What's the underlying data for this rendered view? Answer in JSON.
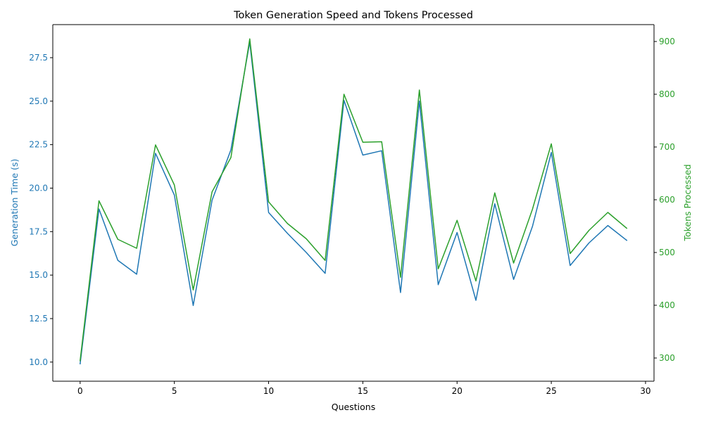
{
  "chart_data": {
    "type": "line",
    "title": "Token Generation Speed and Tokens Processed",
    "xlabel": "Questions",
    "ylabel_left": "Generation Time (s)",
    "ylabel_right": "Tokens Processed",
    "xlim": [
      -1.45,
      30.45
    ],
    "ylim_left": [
      8.9,
      29.4
    ],
    "ylim_right": [
      256,
      932
    ],
    "x_ticks": [
      0,
      5,
      10,
      15,
      20,
      25,
      30
    ],
    "y_ticks_left": [
      10.0,
      12.5,
      15.0,
      17.5,
      20.0,
      22.5,
      25.0,
      27.5
    ],
    "y_ticks_left_labels": [
      "10.0",
      "12.5",
      "15.0",
      "17.5",
      "20.0",
      "22.5",
      "25.0",
      "27.5"
    ],
    "y_ticks_right": [
      300,
      400,
      500,
      600,
      700,
      800,
      900
    ],
    "grid": false,
    "x": [
      0,
      1,
      2,
      3,
      4,
      5,
      6,
      7,
      8,
      9,
      10,
      11,
      12,
      13,
      14,
      15,
      16,
      17,
      18,
      19,
      20,
      21,
      22,
      23,
      24,
      25,
      26,
      27,
      28,
      29
    ],
    "series": [
      {
        "axis": "left",
        "color": "#1f77b4",
        "values": [
          9.9,
          18.8,
          15.85,
          15.05,
          22.0,
          19.6,
          13.25,
          19.3,
          22.2,
          28.4,
          18.6,
          17.4,
          16.3,
          15.1,
          25.05,
          21.9,
          22.15,
          14.0,
          25.0,
          14.45,
          17.45,
          13.55,
          19.1,
          14.75,
          17.8,
          22.05,
          15.55,
          16.85,
          17.85,
          17.0
        ]
      },
      {
        "axis": "right",
        "color": "#2ca02c",
        "values": [
          295,
          598,
          525,
          508,
          704,
          628,
          429,
          615,
          680,
          905,
          596,
          555,
          526,
          485,
          800,
          709,
          710,
          453,
          808,
          469,
          561,
          446,
          613,
          480,
          582,
          706,
          498,
          542,
          576,
          546
        ]
      }
    ]
  }
}
